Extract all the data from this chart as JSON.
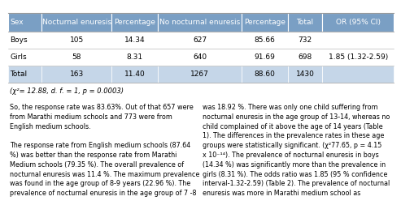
{
  "columns": [
    "Sex",
    "Nocturnal enuresis",
    "Percentage",
    "No nocturnal enuresis",
    "Percentage",
    "Total",
    "OR (95% CI)"
  ],
  "rows": [
    [
      "Boys",
      "105",
      "14.34",
      "627",
      "85.66",
      "732",
      ""
    ],
    [
      "Girls",
      "58",
      "8.31",
      "640",
      "91.69",
      "698",
      "1.85 (1.32-2.59)"
    ],
    [
      "Total",
      "163",
      "11.40",
      "1267",
      "88.60",
      "1430",
      ""
    ]
  ],
  "footer": "(χ²= 12.88, d. f. = 1, p = 0.0003)",
  "para1_left": "So, the response rate was 83.63%. Out of that 657 were\nfrom Marathi medium schools and 773 were from\nEnglish medium schools.",
  "para2_left": "The response rate from English medium schools (87.64\n%) was better than the response rate from Marathi\nMedium schools (79.35 %). The overall prevalence of\nnocturnal enuresis was 11.4 %. The maximum prevalence\nwas found in the age group of 8-9 years (22.96 %). The\nprevalence of nocturnal enuresis in the age group of 7 -8",
  "para1_right": "was 18.92 %. There was only one child suffering from\nnocturnal enuresis in the age group of 13-14, whereas no\nchild complained of it above the age of 14 years (Table\n1). The differences in the prevalence rates in these age\ngroups were statistically significant. (χ²77.65, p = 4.15\nx 10⁻¹⁴). The prevalence of nocturnal enuresis in boys\n(14.34 %) was significantly more than the prevalence in\ngirls (8.31 %). The odds ratio was 1.85 (95 % confidence\ninterval-1.32-2.59) (Table 2). The prevalence of nocturnal\nenuresis was more in Marathi medium school as",
  "header_bg": "#7a9fc4",
  "header_text": "#ffffff",
  "total_row_bg": "#c5d6e8",
  "cell_fontsize": 6.5,
  "footer_fontsize": 6.0,
  "body_fontsize": 5.8
}
